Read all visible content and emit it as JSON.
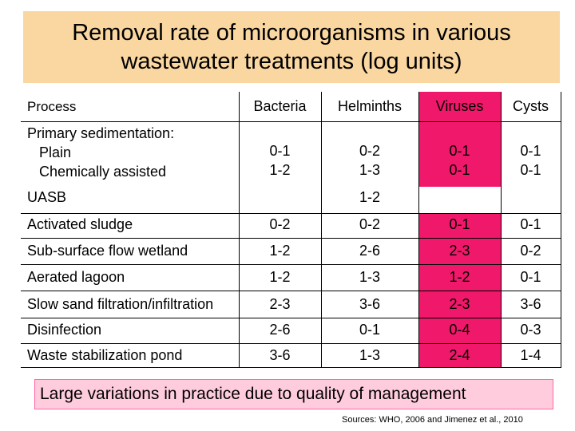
{
  "title": {
    "line1": "Removal rate of microorganisms in various",
    "line2": "wastewater treatments (log units)"
  },
  "table": {
    "headers": [
      "Process",
      "Bacteria",
      "Helminths",
      "Viruses",
      "Cysts"
    ],
    "primary": {
      "label_lines": [
        "Primary sedimentation:",
        "Plain",
        "Chemically assisted"
      ],
      "bacteria": [
        "0-1",
        "1-2"
      ],
      "helminths": [
        "0-2",
        "1-3"
      ],
      "viruses": [
        "0-1",
        "0-1"
      ],
      "cysts": [
        "0-1",
        "0-1"
      ]
    },
    "uasb": {
      "label": "UASB",
      "helminths": "1-2"
    },
    "rows": [
      {
        "process": "Activated sludge",
        "bacteria": "0-2",
        "helminths": "0-2",
        "viruses": "0-1",
        "cysts": "0-1"
      },
      {
        "process": "Sub-surface flow wetland",
        "bacteria": "1-2",
        "helminths": "2-6",
        "viruses": "2-3",
        "cysts": "0-2"
      },
      {
        "process": "Aerated lagoon",
        "bacteria": "1-2",
        "helminths": "1-3",
        "viruses": "1-2",
        "cysts": "0-1"
      },
      {
        "process": "Slow sand filtration/infiltration",
        "bacteria": "2-3",
        "helminths": "3-6",
        "viruses": "2-3",
        "cysts": "3-6"
      },
      {
        "process": "Disinfection",
        "bacteria": "2-6",
        "helminths": "0-1",
        "viruses": "0-4",
        "cysts": "0-3"
      },
      {
        "process": "Waste stabilization pond",
        "bacteria": "3-6",
        "helminths": "1-3",
        "viruses": "2-4",
        "cysts": "1-4"
      }
    ]
  },
  "note": "Large variations in practice due to quality of management",
  "source": "Sources: WHO, 2006 and Jimenez et al., 2010",
  "colors": {
    "title_bg": "#fad7a0",
    "virus_column": "#f0186a",
    "note_bg": "#ffccdd"
  }
}
